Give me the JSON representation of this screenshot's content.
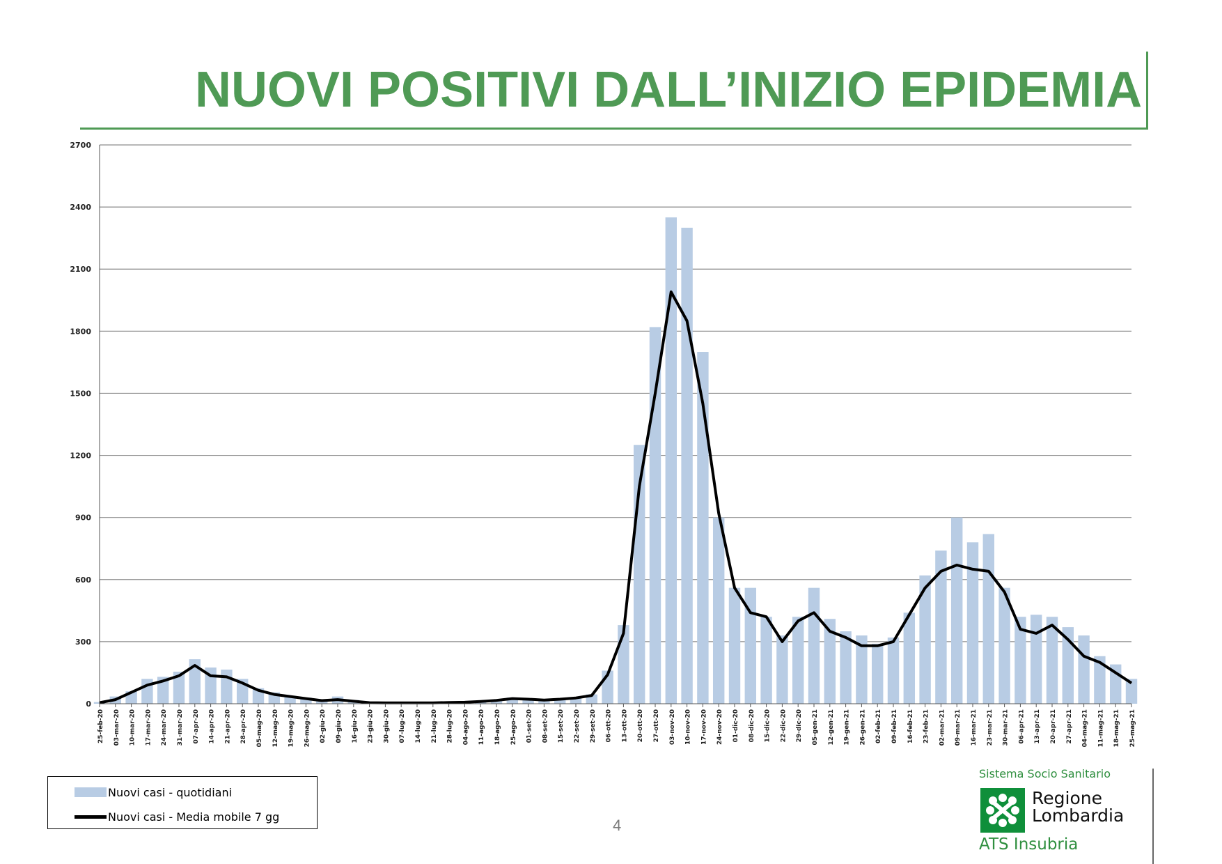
{
  "slide": {
    "title": "NUOVI POSITIVI DALL’INIZIO EPIDEMIA",
    "page_number": "4",
    "accent_color": "#4f9a55"
  },
  "legend": {
    "bar_label": "Nuovi casi - quotidiani",
    "line_label": "Nuovi casi - Media mobile 7 gg",
    "bar_color": "#b8cce4",
    "line_color": "#000000"
  },
  "logo": {
    "top_line": "Sistema Socio Sanitario",
    "name_line1": "Regione",
    "name_line2": "Lombardia",
    "ats": "ATS Insubria",
    "icon": "regione-lombardia-rosa-camuna-icon"
  },
  "chart_data": {
    "type": "bar",
    "title": "NUOVI POSITIVI DALL’INIZIO EPIDEMIA",
    "xlabel": "",
    "ylabel": "",
    "ylim": [
      0,
      2700
    ],
    "yticks": [
      0,
      300,
      600,
      900,
      1200,
      1500,
      1800,
      2100,
      2400,
      2700
    ],
    "grid": true,
    "legend_position": "bottom-left",
    "categories": [
      "25-feb-20",
      "03-mar-20",
      "10-mar-20",
      "17-mar-20",
      "24-mar-20",
      "31-mar-20",
      "07-apr-20",
      "14-apr-20",
      "21-apr-20",
      "28-apr-20",
      "05-mag-20",
      "12-mag-20",
      "19-mag-20",
      "26-mag-20",
      "02-giu-20",
      "09-giu-20",
      "16-giu-20",
      "23-giu-20",
      "30-giu-20",
      "07-lug-20",
      "14-lug-20",
      "21-lug-20",
      "28-lug-20",
      "04-ago-20",
      "11-ago-20",
      "18-ago-20",
      "25-ago-20",
      "01-set-20",
      "08-set-20",
      "15-set-20",
      "22-set-20",
      "29-set-20",
      "06-ott-20",
      "13-ott-20",
      "20-ott-20",
      "27-ott-20",
      "03-nov-20",
      "10-nov-20",
      "17-nov-20",
      "24-nov-20",
      "01-dic-20",
      "08-dic-20",
      "15-dic-20",
      "22-dic-20",
      "29-dic-20",
      "05-gen-21",
      "12-gen-21",
      "19-gen-21",
      "26-gen-21",
      "02-feb-21",
      "09-feb-21",
      "16-feb-21",
      "23-feb-21",
      "02-mar-21",
      "09-mar-21",
      "16-mar-21",
      "23-mar-21",
      "30-mar-21",
      "06-apr-21",
      "13-apr-21",
      "20-apr-21",
      "27-apr-21",
      "04-mag-21",
      "11-mag-21",
      "18-mag-21",
      "25-mag-21"
    ],
    "series": [
      {
        "name": "Nuovi casi - quotidiani",
        "kind": "bar",
        "values": [
          8,
          35,
          60,
          120,
          130,
          155,
          215,
          175,
          165,
          120,
          75,
          55,
          38,
          30,
          18,
          35,
          18,
          6,
          5,
          5,
          5,
          5,
          8,
          8,
          12,
          18,
          30,
          25,
          22,
          25,
          30,
          45,
          160,
          380,
          1250,
          1820,
          2350,
          2300,
          1700,
          900,
          560,
          560,
          420,
          330,
          420,
          560,
          410,
          350,
          330,
          290,
          320,
          440,
          620,
          740,
          900,
          780,
          820,
          560,
          420,
          430,
          420,
          370,
          330,
          230,
          190,
          120
        ]
      },
      {
        "name": "Nuovi casi - Media mobile 7 gg",
        "kind": "line",
        "values": [
          5,
          20,
          55,
          90,
          110,
          135,
          185,
          135,
          130,
          100,
          65,
          45,
          35,
          25,
          15,
          20,
          12,
          5,
          4,
          4,
          4,
          4,
          6,
          7,
          11,
          16,
          25,
          22,
          18,
          22,
          28,
          40,
          140,
          340,
          1050,
          1500,
          1990,
          1850,
          1450,
          920,
          560,
          440,
          420,
          300,
          400,
          440,
          350,
          320,
          280,
          280,
          300,
          430,
          560,
          640,
          670,
          650,
          640,
          540,
          360,
          340,
          380,
          310,
          230,
          200,
          150,
          100
        ]
      }
    ]
  }
}
